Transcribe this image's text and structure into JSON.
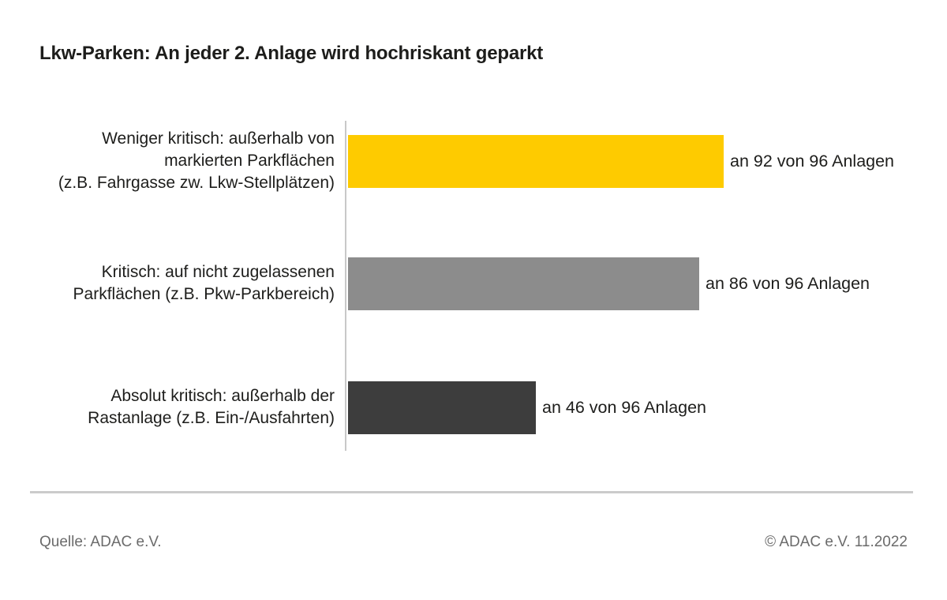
{
  "title": "Lkw-Parken: An jeder 2. Anlage wird hochriskant geparkt",
  "chart_data": {
    "type": "bar",
    "orientation": "horizontal",
    "title": "Lkw-Parken: An jeder 2. Anlage wird hochriskant geparkt",
    "xlabel": "",
    "ylabel": "",
    "xlim": [
      0,
      96
    ],
    "grid": false,
    "legend": false,
    "categories": [
      "Weniger kritisch: außerhalb von markierten Parkflächen (z.B. Fahrgasse zw. Lkw-Stellplätzen)",
      "Kritisch: auf nicht zugelassenen Parkflächen (z.B. Pkw-Parkbereich)",
      "Absolut kritisch: außerhalb der Rastanlage (z.B. Ein-/Ausfahrten)"
    ],
    "values": [
      92,
      86,
      46
    ],
    "total": 96,
    "bars": [
      {
        "label_lines": [
          "Weniger kritisch: außerhalb von",
          "markierten Parkflächen",
          "(z.B. Fahrgasse zw. Lkw-Stellplätzen)"
        ],
        "value": 92,
        "annotation": "an 92 von 96 Anlagen",
        "color": "#FECB00"
      },
      {
        "label_lines": [
          "Kritisch: auf nicht zugelassenen",
          "Parkflächen (z.B. Pkw-Parkbereich)"
        ],
        "value": 86,
        "annotation": "an 86 von 96 Anlagen",
        "color": "#8C8C8C"
      },
      {
        "label_lines": [
          "Absolut kritisch: außerhalb der",
          "Rastanlage (z.B. Ein-/Ausfahrten)"
        ],
        "value": 46,
        "annotation": "an 46 von 96 Anlagen",
        "color": "#3D3D3D"
      }
    ]
  },
  "footer": {
    "source": "Quelle: ADAC e.V.",
    "copyright": "© ADAC e.V. 11.2022"
  },
  "colors": {
    "title_text": "#1d1d1b",
    "label_text": "#1d1d1b",
    "footer_text": "#6b6b6b",
    "axis_line": "#c8c8c8",
    "divider": "#cbcbcb",
    "bar_yellow": "#FECB00",
    "bar_gray": "#8C8C8C",
    "bar_dark": "#3D3D3D"
  }
}
